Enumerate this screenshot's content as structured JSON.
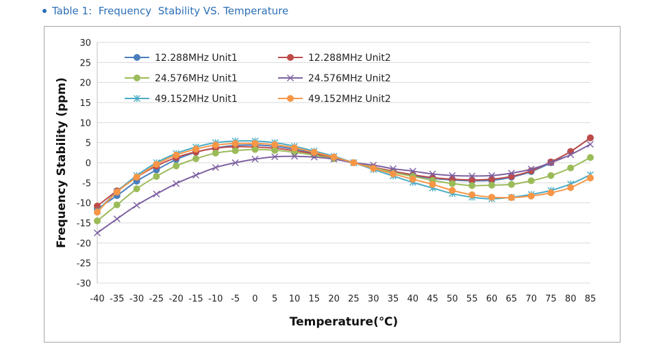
{
  "header": {
    "title": "Table 1:  Frequency  Stability VS. Temperature"
  },
  "colors": {
    "accent": "#2c6fb7",
    "grid": "#d9d9d9",
    "frame": "#a6a6a6"
  },
  "chart_data": {
    "type": "line",
    "title": "",
    "xlabel": "Temperature(℃)",
    "ylabel": "Frequency Stability (ppm)",
    "ylim": [
      -30,
      30
    ],
    "yticks": [
      30,
      25,
      20,
      15,
      10,
      5,
      0,
      -5,
      -10,
      -15,
      -20,
      -25,
      -30
    ],
    "x": [
      -40,
      -35,
      -30,
      -25,
      -20,
      -15,
      -10,
      -5,
      0,
      5,
      10,
      15,
      20,
      25,
      30,
      35,
      40,
      45,
      50,
      55,
      60,
      65,
      70,
      75,
      80,
      85
    ],
    "grid": true,
    "legend_position": "top-left",
    "series": [
      {
        "name": "12.288MHz Unit1",
        "color": "#4a7ebb",
        "marker": "circle",
        "values": [
          -11.5,
          -8.2,
          -4.6,
          -1.8,
          0.8,
          2.6,
          3.7,
          4.3,
          4.4,
          4.1,
          3.4,
          2.4,
          1.2,
          0.0,
          -1.2,
          -2.3,
          -3.2,
          -3.9,
          -4.3,
          -4.5,
          -4.4,
          -3.6,
          -2.2,
          0.0,
          2.8,
          6.2
        ]
      },
      {
        "name": "12.288MHz Unit2",
        "color": "#be4b48",
        "marker": "circle",
        "values": [
          -10.8,
          -7.0,
          -3.6,
          -0.8,
          1.3,
          2.7,
          3.6,
          4.0,
          3.9,
          3.6,
          3.0,
          2.2,
          1.2,
          0.0,
          -1.1,
          -2.1,
          -3.0,
          -3.7,
          -4.1,
          -4.3,
          -4.1,
          -3.4,
          -2.0,
          0.2,
          2.8,
          6.2
        ]
      },
      {
        "name": "24.576MHz Unit1",
        "color": "#9bbb59",
        "marker": "circle",
        "values": [
          -14.5,
          -10.5,
          -6.5,
          -3.4,
          -0.8,
          1.0,
          2.4,
          3.0,
          3.3,
          3.1,
          2.6,
          1.9,
          1.0,
          0.0,
          -1.2,
          -2.4,
          -3.4,
          -4.4,
          -5.2,
          -5.7,
          -5.6,
          -5.4,
          -4.5,
          -3.2,
          -1.3,
          1.3
        ]
      },
      {
        "name": "24.576MHz Unit2",
        "color": "#7d60a0",
        "marker": "x",
        "values": [
          -17.5,
          -14.0,
          -10.6,
          -7.8,
          -5.2,
          -3.1,
          -1.2,
          0.0,
          0.9,
          1.5,
          1.6,
          1.4,
          0.9,
          0.0,
          -0.6,
          -1.5,
          -2.1,
          -2.8,
          -3.2,
          -3.3,
          -3.2,
          -2.6,
          -1.6,
          0.0,
          2.0,
          4.6
        ]
      },
      {
        "name": "49.152MHz Unit1",
        "color": "#4bacc6",
        "marker": "star",
        "values": [
          -12.0,
          -7.2,
          -3.2,
          0.0,
          2.3,
          3.9,
          5.0,
          5.4,
          5.4,
          5.0,
          4.1,
          2.9,
          1.6,
          0.0,
          -1.7,
          -3.3,
          -4.9,
          -6.3,
          -7.7,
          -8.6,
          -9.0,
          -8.6,
          -7.9,
          -6.9,
          -5.3,
          -3.0
        ]
      },
      {
        "name": "49.152MHz Unit2",
        "color": "#f79646",
        "marker": "circle",
        "values": [
          -12.3,
          -7.3,
          -3.6,
          -0.4,
          1.9,
          3.4,
          4.4,
          4.8,
          4.8,
          4.5,
          3.7,
          2.6,
          1.4,
          0.0,
          -1.4,
          -2.8,
          -4.1,
          -5.4,
          -6.9,
          -8.0,
          -8.6,
          -8.7,
          -8.3,
          -7.5,
          -6.2,
          -3.8
        ]
      }
    ]
  }
}
